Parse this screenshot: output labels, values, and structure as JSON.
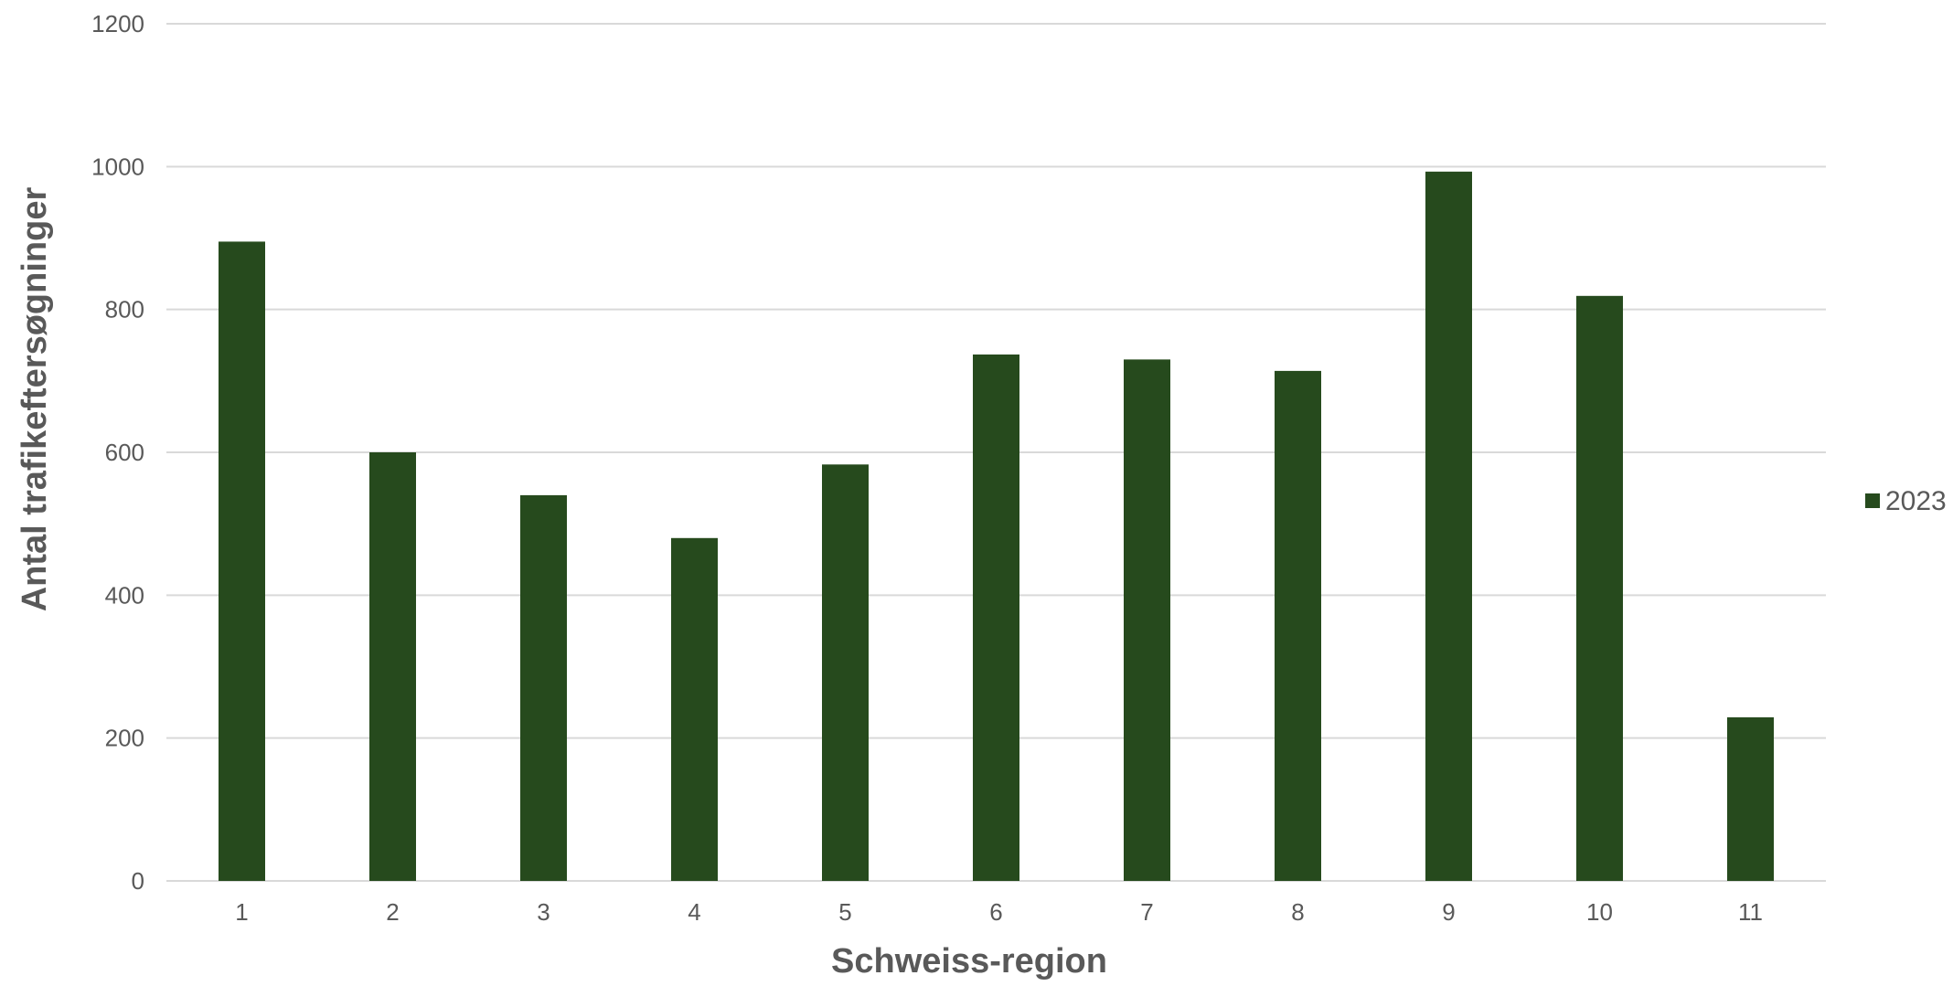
{
  "chart_data": {
    "type": "bar",
    "title": "",
    "xlabel": "Schweiss-region",
    "ylabel": "Antal trafikeftersøgninger",
    "categories": [
      "1",
      "2",
      "3",
      "4",
      "5",
      "6",
      "7",
      "8",
      "9",
      "10",
      "11"
    ],
    "series": [
      {
        "name": "2023",
        "values": [
          895,
          600,
          540,
          480,
          583,
          737,
          730,
          714,
          993,
          819,
          229
        ]
      }
    ],
    "ylim": [
      0,
      1200
    ],
    "yticks": [
      0,
      200,
      400,
      600,
      800,
      1000,
      1200
    ],
    "grid": true,
    "legend_position": "right",
    "colors": {
      "bar": "#264a1d",
      "gridline": "#d9d9d9",
      "text": "#595959"
    }
  }
}
